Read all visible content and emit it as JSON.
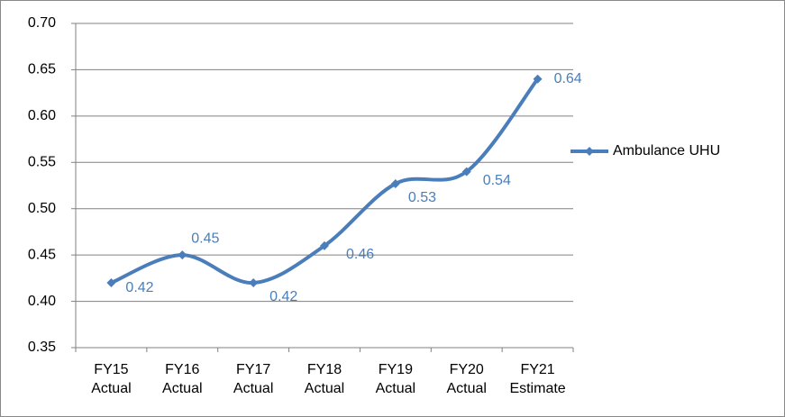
{
  "chart_data": {
    "type": "line",
    "categories": [
      "FY15 Actual",
      "FY16 Actual",
      "FY17 Actual",
      "FY18 Actual",
      "FY19 Actual",
      "FY20 Actual",
      "FY21 Estimate"
    ],
    "series": [
      {
        "name": "Ambulance UHU",
        "color": "#4a7ebb",
        "values": [
          0.42,
          0.45,
          0.42,
          0.46,
          0.527,
          0.54,
          0.64
        ],
        "value_labels": [
          "0.42",
          "0.45",
          "0.42",
          "0.46",
          "0.53",
          "0.54",
          "0.64"
        ]
      }
    ],
    "ylim": [
      0.35,
      0.7
    ],
    "yticks": [
      0.35,
      {
        "value": 0.4,
        "label": "0.40"
      },
      0.45,
      {
        "value": 0.5,
        "label": "0.50"
      },
      0.55,
      {
        "value": 0.6,
        "label": "0.60"
      },
      0.65,
      {
        "value": 0.7,
        "label": "0.70"
      }
    ],
    "grid": true,
    "smooth": true,
    "legend": "right"
  }
}
